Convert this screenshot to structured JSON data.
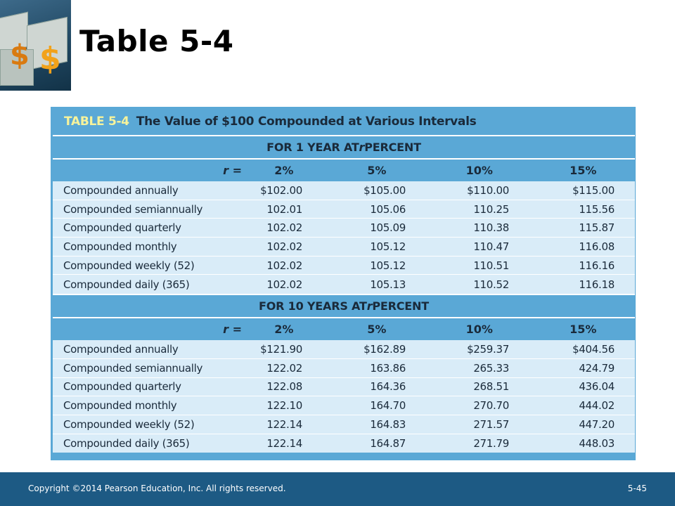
{
  "slide": {
    "title": "Table 5-4"
  },
  "logo": {
    "glyph_left": "$",
    "glyph_right": "$"
  },
  "table": {
    "number": "TABLE 5-4",
    "caption": "The Value of $100 Compounded at Various Intervals",
    "sections": [
      {
        "heading": "FOR 1 YEAR AT r PERCENT",
        "rate_label": "r  =",
        "rates": [
          "2%",
          "5%",
          "10%",
          "15%"
        ],
        "rows": [
          {
            "label": "Compounded annually",
            "values": [
              "$102.00",
              "$105.00",
              "$110.00",
              "$115.00"
            ]
          },
          {
            "label": "Compounded semiannually",
            "values": [
              "102.01",
              "105.06",
              "110.25",
              "115.56"
            ]
          },
          {
            "label": "Compounded quarterly",
            "values": [
              "102.02",
              "105.09",
              "110.38",
              "115.87"
            ]
          },
          {
            "label": "Compounded monthly",
            "values": [
              "102.02",
              "105.12",
              "110.47",
              "116.08"
            ]
          },
          {
            "label": "Compounded weekly (52)",
            "values": [
              "102.02",
              "105.12",
              "110.51",
              "116.16"
            ]
          },
          {
            "label": "Compounded daily (365)",
            "values": [
              "102.02",
              "105.13",
              "110.52",
              "116.18"
            ]
          }
        ]
      },
      {
        "heading": "FOR 10 YEARS AT r PERCENT",
        "rate_label": "r  =",
        "rates": [
          "2%",
          "5%",
          "10%",
          "15%"
        ],
        "rows": [
          {
            "label": "Compounded annually",
            "values": [
              "$121.90",
              "$162.89",
              "$259.37",
              "$404.56"
            ]
          },
          {
            "label": "Compounded semiannually",
            "values": [
              "122.02",
              "163.86",
              "265.33",
              "424.79"
            ]
          },
          {
            "label": "Compounded quarterly",
            "values": [
              "122.08",
              "164.36",
              "268.51",
              "436.04"
            ]
          },
          {
            "label": "Compounded monthly",
            "values": [
              "122.10",
              "164.70",
              "270.70",
              "444.02"
            ]
          },
          {
            "label": "Compounded weekly (52)",
            "values": [
              "122.14",
              "164.83",
              "271.57",
              "447.20"
            ]
          },
          {
            "label": "Compounded daily (365)",
            "values": [
              "122.14",
              "164.87",
              "271.79",
              "448.03"
            ]
          }
        ]
      }
    ]
  },
  "footer": {
    "copyright": "Copyright ©2014 Pearson Education, Inc. All rights reserved.",
    "page_number": "5-45"
  },
  "colors": {
    "band": "#5aa8d6",
    "row_fill": "#d9ecf8",
    "table_number": "#f7f39b",
    "footer": "#1d5a84"
  }
}
